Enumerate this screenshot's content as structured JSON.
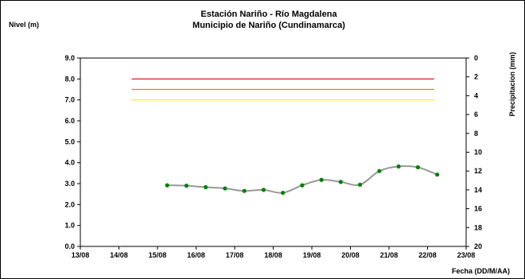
{
  "chart_data": {
    "type": "line",
    "title": "Estación Nariño  - Río Magdalena",
    "subtitle": "Municipio de Nariño (Cundinamarca)",
    "ylabel": "Nivel (m)",
    "y2label": "Precipitacion (mm)",
    "xlabel": "Fecha (DD/M/AA)",
    "x_ticks": [
      "13/08",
      "14/08",
      "15/08",
      "16/08",
      "17/08",
      "18/08",
      "19/08",
      "20/08",
      "21/08",
      "22/08",
      "23/08"
    ],
    "y_ticks": [
      "0.0",
      "1.0",
      "2.0",
      "3.0",
      "4.0",
      "5.0",
      "6.0",
      "7.0",
      "8.0",
      "9.0"
    ],
    "y2_ticks": [
      "0",
      "2",
      "4",
      "6",
      "8",
      "10",
      "12",
      "14",
      "16",
      "18",
      "20"
    ],
    "xlim": [
      0,
      10
    ],
    "ylim": [
      0,
      9
    ],
    "y2lim": [
      20,
      0
    ],
    "grid": false,
    "thresholds": [
      {
        "value": 8.0,
        "color": "#e00000"
      },
      {
        "value": 7.5,
        "color": "#f08000"
      },
      {
        "value": 7.0,
        "color": "#f0f000"
      }
    ],
    "threshold_x_range": [
      1.33,
      9.17
    ],
    "series": [
      {
        "type": "line",
        "color": "#008000",
        "line_color": "#999999",
        "x": [
          2.25,
          2.75,
          3.25,
          3.75,
          4.25,
          4.75,
          5.25,
          5.75,
          6.25,
          6.75,
          7.25,
          7.75,
          8.25,
          8.75,
          9.25
        ],
        "y": [
          2.92,
          2.9,
          2.83,
          2.77,
          2.65,
          2.7,
          2.56,
          2.92,
          3.18,
          3.08,
          2.95,
          3.6,
          3.82,
          3.78,
          3.43
        ]
      }
    ]
  }
}
